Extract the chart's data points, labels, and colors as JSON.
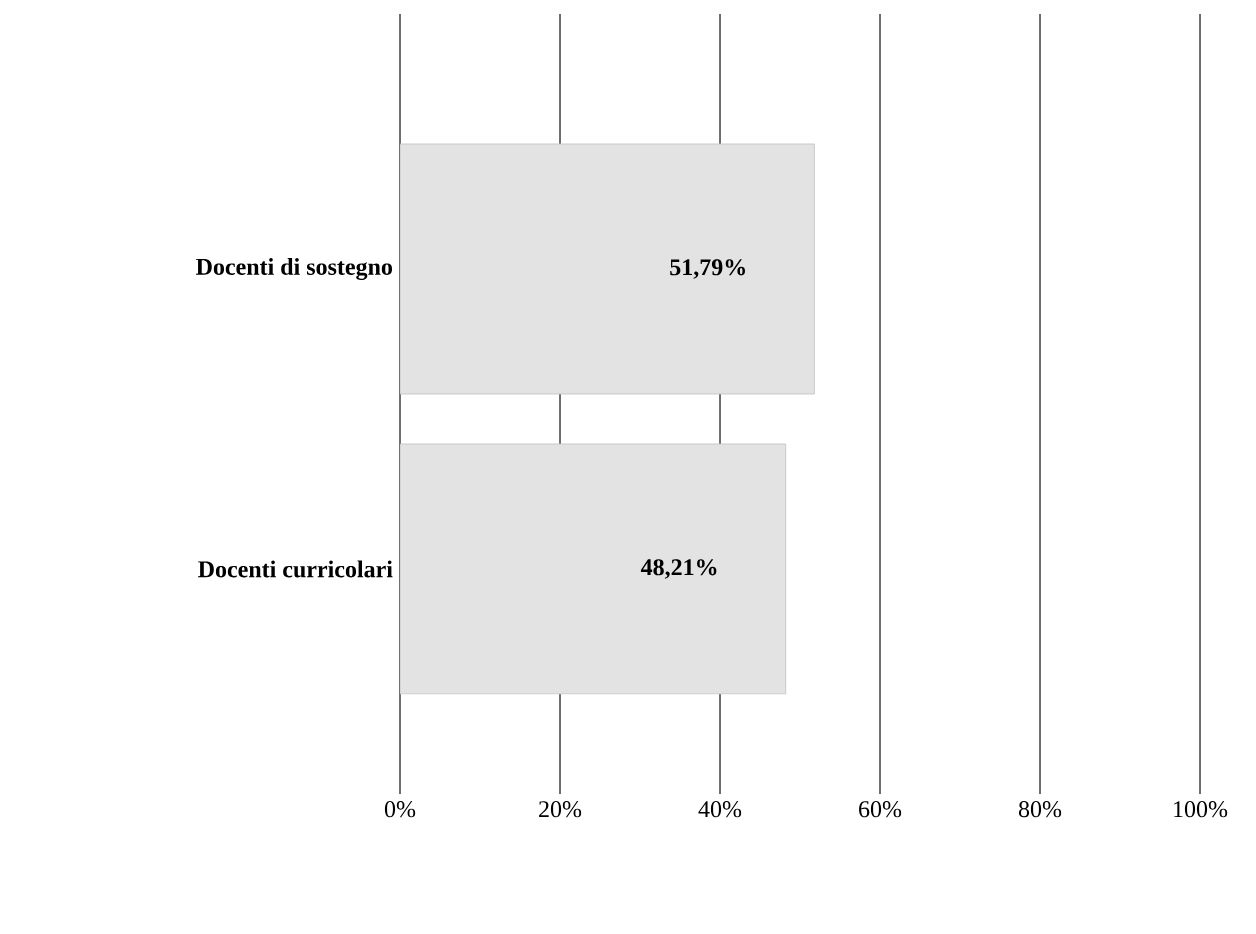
{
  "chart_data": {
    "type": "bar",
    "orientation": "horizontal",
    "categories": [
      "Docenti di sostegno",
      "Docenti curricolari"
    ],
    "values": [
      51.79,
      48.21
    ],
    "value_labels": [
      "51,79%",
      "48,21%"
    ],
    "color": "#e3e3e3",
    "xlim": [
      0,
      100
    ],
    "xticks": [
      {
        "value": 0,
        "label": "0%"
      },
      {
        "value": 20,
        "label": "20%"
      },
      {
        "value": 40,
        "label": "40%"
      },
      {
        "value": 60,
        "label": "60%"
      },
      {
        "value": 80,
        "label": "80%"
      },
      {
        "value": 100,
        "label": "100%"
      }
    ],
    "grid": "x"
  }
}
